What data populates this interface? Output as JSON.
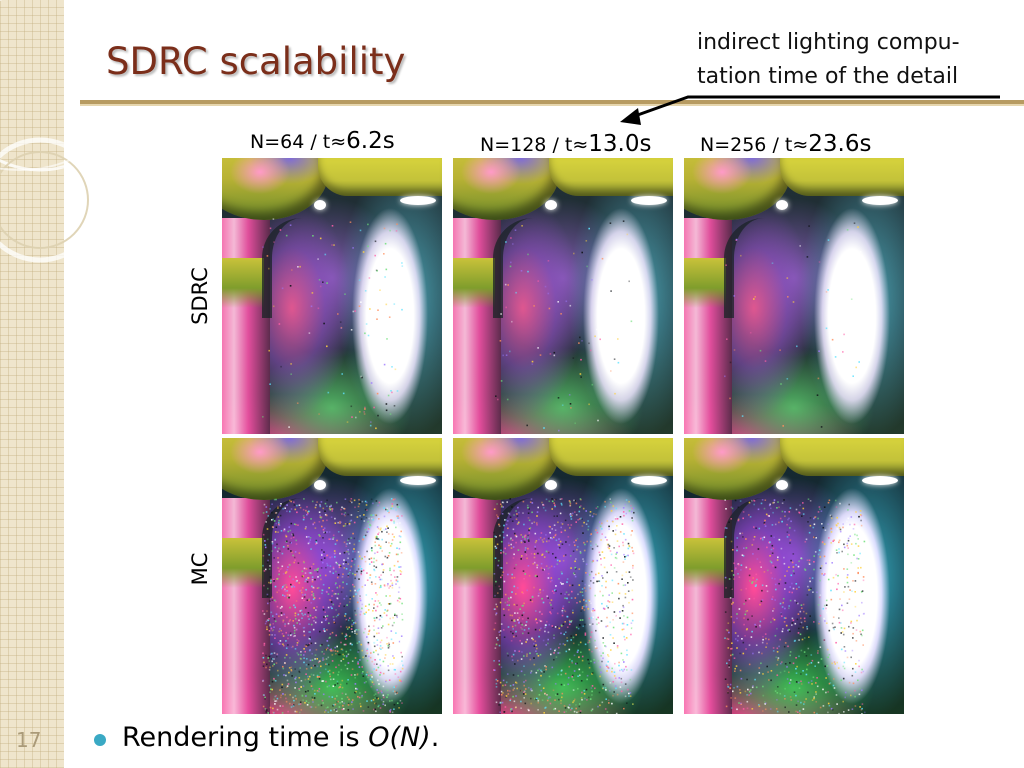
{
  "slide": {
    "title": "SDRC scalability",
    "number": "17"
  },
  "annotation": {
    "lines": [
      "indirect lighting compu-",
      "tation time of the detail"
    ]
  },
  "columns": [
    {
      "n": "N=64",
      "sep": " / t≈",
      "time": "6.2s"
    },
    {
      "n": "N=128",
      "sep": " / t≈",
      "time": "13.0s"
    },
    {
      "n": "N=256",
      "sep": " / t≈",
      "time": "23.6s"
    }
  ],
  "rows": [
    {
      "label": "SDRC",
      "noise_level": 0.1
    },
    {
      "label": "MC",
      "noise_level": 1.0
    }
  ],
  "bullet": {
    "text": "Rendering time is ",
    "emphasis": "O(N)",
    "end": "."
  },
  "colors": {
    "title": "#7b2e1a",
    "rule": "#b79b62",
    "bullet_dot": "#3aa9c4",
    "strip": "#efe5cc"
  }
}
